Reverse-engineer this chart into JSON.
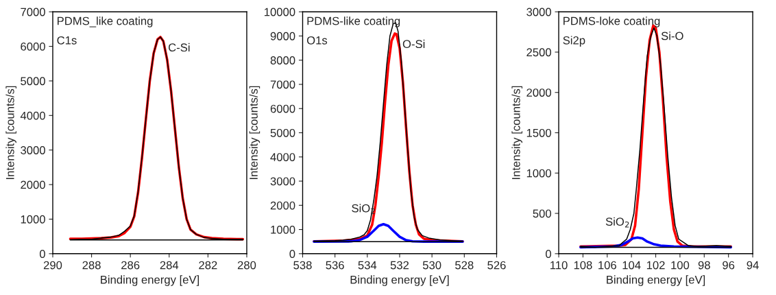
{
  "chart_data": [
    {
      "type": "line",
      "xlabel": "Binding energy [eV]",
      "ylabel": "Intensity [counts/s]",
      "xlim": [
        290,
        280
      ],
      "xticks": [
        290,
        288,
        286,
        284,
        282,
        280
      ],
      "ylim": [
        0,
        7000
      ],
      "yticks": [
        0,
        1000,
        2000,
        3000,
        4000,
        5000,
        6000,
        7000
      ],
      "grid": false,
      "legend": false,
      "annotations": [
        "PDMS_like coating",
        "C1s",
        {
          "text": "C-Si",
          "x": 284.45,
          "y": 6270
        }
      ],
      "series": [
        {
          "color": "#ff0000",
          "x": [
            289.1,
            288.5,
            288,
            287.5,
            287,
            286.6,
            286.3,
            286,
            285.8,
            285.6,
            285.4,
            285.2,
            285.0,
            284.8,
            284.6,
            284.45,
            284.3,
            284.1,
            283.9,
            283.7,
            283.5,
            283.3,
            283.1,
            282.9,
            282.6,
            282.2,
            281.8,
            281.2,
            280.5,
            280.2
          ],
          "values": [
            430,
            430,
            440,
            450,
            470,
            510,
            600,
            780,
            1080,
            1780,
            2780,
            3900,
            5000,
            5800,
            6200,
            6270,
            6150,
            5600,
            4700,
            3600,
            2500,
            1600,
            1000,
            700,
            560,
            480,
            450,
            430,
            420,
            420
          ]
        },
        {
          "color": "#000000",
          "x": [
            289.1,
            288.5,
            288,
            287.5,
            287,
            286.6,
            286.3,
            286,
            285.8,
            285.6,
            285.4,
            285.2,
            285.0,
            284.8,
            284.6,
            284.45,
            284.3,
            284.1,
            283.9,
            283.7,
            283.5,
            283.3,
            283.1,
            282.9,
            282.6,
            282.2,
            281.8,
            281.2,
            280.5,
            280.2
          ],
          "values": [
            410,
            420,
            420,
            450,
            480,
            530,
            650,
            800,
            1100,
            1800,
            2800,
            3900,
            5000,
            5800,
            6200,
            6270,
            6150,
            5600,
            4700,
            3600,
            2500,
            1600,
            1000,
            700,
            560,
            470,
            440,
            420,
            420,
            420
          ]
        },
        {
          "color": "#000000",
          "x": [
            289.1,
            280.2
          ],
          "values": [
            400,
            400
          ]
        }
      ]
    },
    {
      "type": "line",
      "xlabel": "Binding energy [eV]",
      "ylabel": "Intensity [counts/s]",
      "xlim": [
        538,
        526
      ],
      "xticks": [
        538,
        536,
        534,
        532,
        530,
        528,
        526
      ],
      "ylim": [
        0,
        10000
      ],
      "yticks": [
        0,
        1000,
        2000,
        3000,
        4000,
        5000,
        6000,
        7000,
        8000,
        9000,
        10000
      ],
      "grid": false,
      "legend": false,
      "annotations": [
        "PDMS-like coating",
        "O1s",
        {
          "text": "O-Si",
          "x": 532.3,
          "y": 9100
        },
        {
          "text": "SiO$_{2}$",
          "x": 533.0,
          "y": 1220
        }
      ],
      "series": [
        {
          "color": "#000000",
          "x": [
            537.3,
            536.5,
            536,
            535.5,
            535,
            534.5,
            534.2,
            534,
            533.8,
            533.6,
            533.4,
            533.2,
            533,
            532.8,
            532.6,
            532.4,
            532.25,
            532.1,
            531.9,
            531.7,
            531.5,
            531.3,
            531.1,
            530.9,
            530.6,
            530.2,
            529.5,
            528.8,
            528.1
          ],
          "values": [
            520,
            530,
            540,
            560,
            600,
            680,
            780,
            950,
            1400,
            2200,
            3200,
            4600,
            6200,
            7800,
            9000,
            9500,
            9550,
            9200,
            8000,
            6200,
            4300,
            2600,
            1500,
            1000,
            750,
            650,
            570,
            540,
            520
          ]
        },
        {
          "color": "#ff0000",
          "x": [
            537.3,
            535.5,
            534.5,
            534,
            533.7,
            533.5,
            533.3,
            533.1,
            532.9,
            532.7,
            532.5,
            532.3,
            532.2,
            532.0,
            531.8,
            531.6,
            531.4,
            531.2,
            531.0,
            530.8,
            530.5,
            530,
            529,
            528.1
          ],
          "values": [
            510,
            540,
            600,
            750,
            1200,
            2000,
            3200,
            4600,
            6300,
            7800,
            8800,
            9100,
            9080,
            8500,
            7100,
            5200,
            3400,
            2000,
            1200,
            800,
            620,
            560,
            530,
            510
          ]
        },
        {
          "color": "#0000ff",
          "x": [
            537.3,
            535,
            534.5,
            534,
            533.6,
            533.3,
            533.0,
            532.7,
            532.4,
            532.0,
            531.6,
            531.2,
            530.5,
            528.1
          ],
          "values": [
            500,
            510,
            560,
            700,
            950,
            1150,
            1220,
            1150,
            950,
            700,
            560,
            510,
            500,
            500
          ]
        },
        {
          "color": "#000000",
          "x": [
            537.3,
            528.1
          ],
          "values": [
            500,
            500
          ]
        }
      ]
    },
    {
      "type": "line",
      "xlabel": "Binding energy [eV]",
      "ylabel": "Intensity [counts/s]",
      "xlim": [
        110,
        94
      ],
      "xticks": [
        110,
        108,
        106,
        104,
        102,
        100,
        98,
        96,
        94
      ],
      "ylim": [
        0,
        3000
      ],
      "yticks": [
        0,
        500,
        1000,
        1500,
        2000,
        2500,
        3000
      ],
      "grid": false,
      "legend": false,
      "annotations": [
        "PDMS-loke coating",
        "Si2p",
        {
          "text": "Si-O",
          "x": 102.2,
          "y": 2830
        },
        {
          "text": "SiO$_{2}$",
          "x": 103.5,
          "y": 200
        }
      ],
      "series": [
        {
          "color": "#000000",
          "x": [
            108.2,
            107,
            106,
            105,
            104.8,
            104.4,
            104.1,
            103.8,
            103.6,
            103.3,
            103.0,
            102.7,
            102.4,
            102.15,
            101.9,
            101.6,
            101.3,
            101.0,
            100.7,
            100.4,
            100.1,
            99.7,
            99.3,
            98.5,
            97,
            95.8
          ],
          "values": [
            90,
            80,
            90,
            100,
            130,
            180,
            300,
            500,
            800,
            1300,
            1900,
            2450,
            2700,
            2800,
            2700,
            2350,
            1800,
            1200,
            700,
            350,
            180,
            140,
            100,
            90,
            100,
            90
          ]
        },
        {
          "color": "#ff0000",
          "x": [
            108.2,
            105,
            104.5,
            104,
            103.7,
            103.4,
            103.1,
            102.8,
            102.5,
            102.2,
            102.0,
            101.7,
            101.4,
            101.1,
            100.8,
            100.5,
            100.2,
            99.8,
            99,
            95.8
          ],
          "values": [
            90,
            100,
            110,
            180,
            350,
            800,
            1500,
            2200,
            2650,
            2830,
            2800,
            2500,
            1900,
            1200,
            650,
            300,
            150,
            100,
            90,
            90
          ]
        },
        {
          "color": "#0000ff",
          "x": [
            108.2,
            105.5,
            104.8,
            104.3,
            103.9,
            103.5,
            103.1,
            102.7,
            102.2,
            101.6,
            100.5,
            95.8
          ],
          "values": [
            80,
            90,
            110,
            150,
            190,
            200,
            190,
            150,
            120,
            100,
            90,
            80
          ]
        },
        {
          "color": "#000000",
          "x": [
            108.2,
            95.8
          ],
          "values": [
            80,
            80
          ]
        }
      ]
    }
  ]
}
